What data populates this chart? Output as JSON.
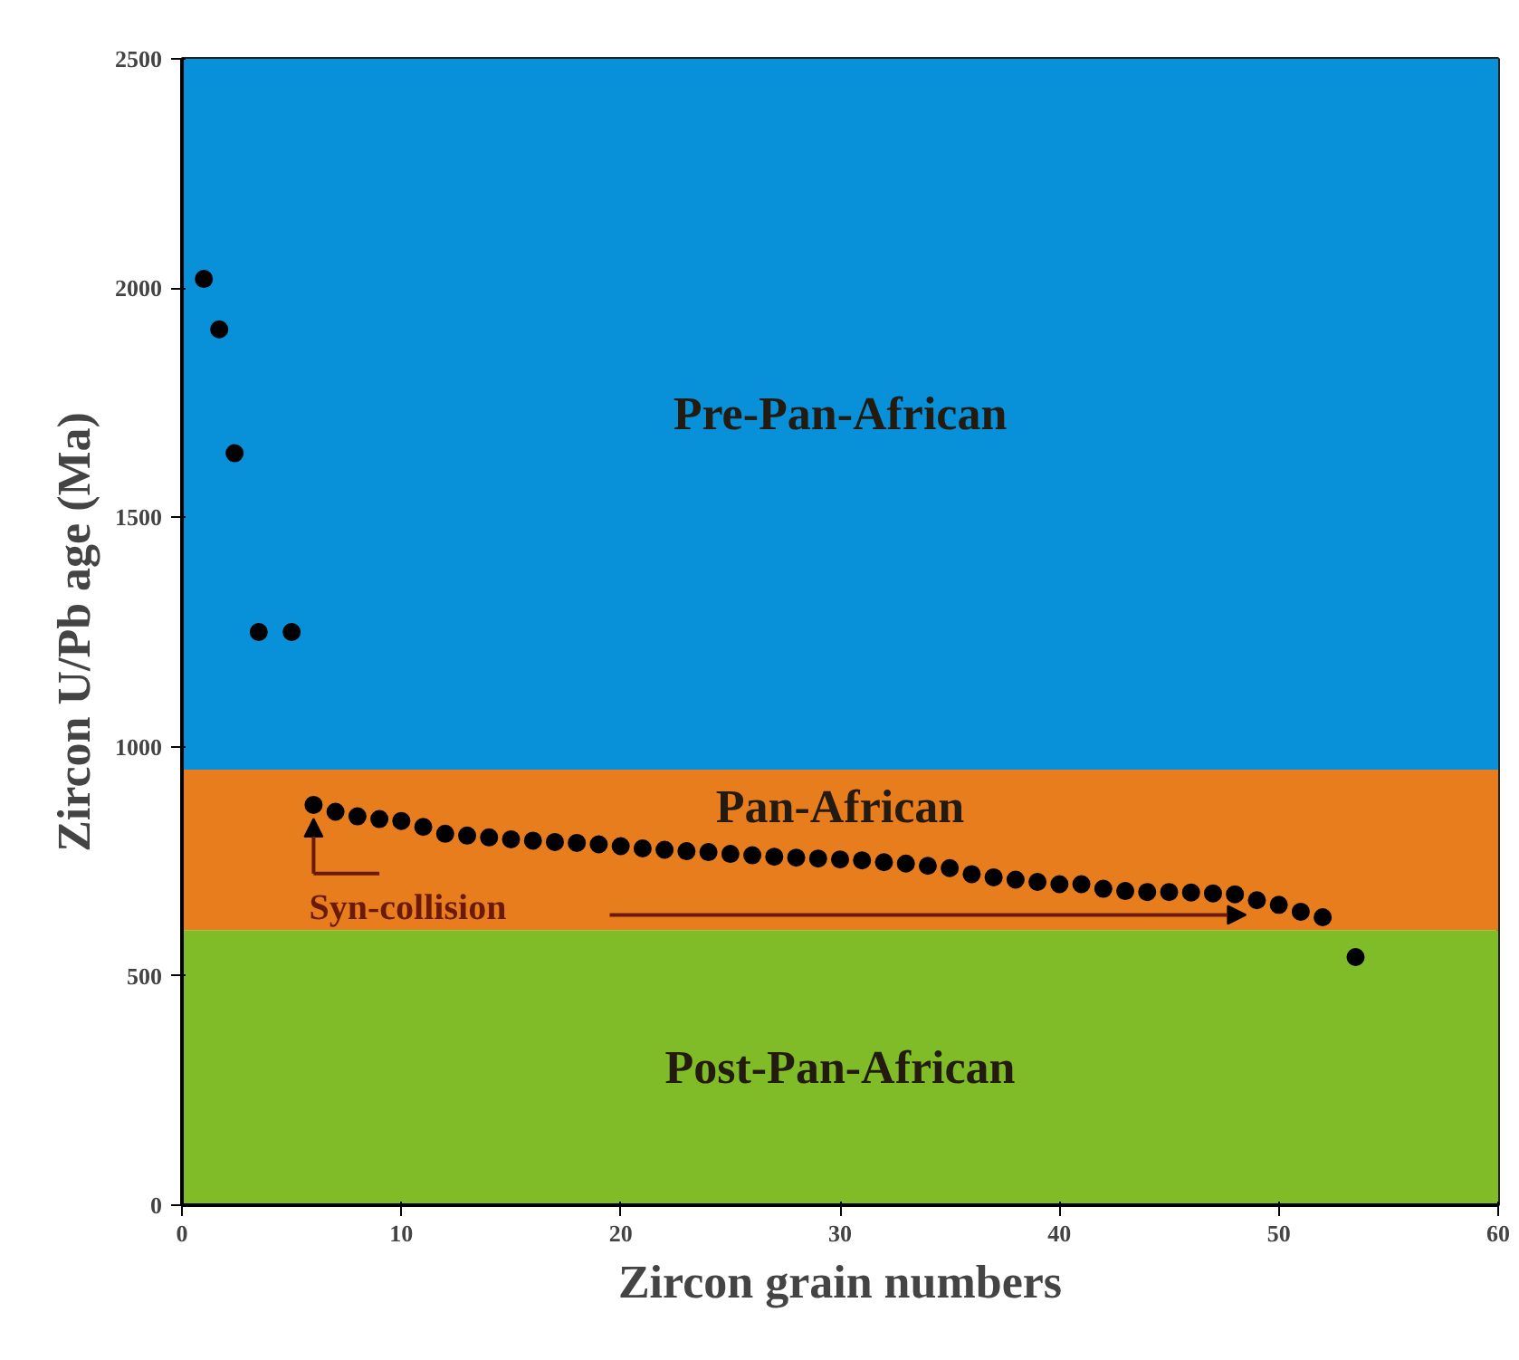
{
  "chart_data": {
    "type": "scatter",
    "xlabel": "Zircon grain numbers",
    "ylabel": "Zircon U/Pb age (Ma)",
    "x": [
      1,
      1.7,
      2.4,
      3.5,
      5,
      6,
      7,
      8,
      9,
      10,
      11,
      12,
      13,
      14,
      15,
      16,
      17,
      18,
      19,
      20,
      21,
      22,
      23,
      24,
      25,
      26,
      27,
      28,
      29,
      30,
      31,
      32,
      33,
      34,
      35,
      36,
      37,
      38,
      39,
      40,
      41,
      42,
      43,
      44,
      45,
      46,
      47,
      48,
      49,
      50,
      51,
      52,
      53.5
    ],
    "series": [
      {
        "color": "#000000",
        "values": [
          2020,
          1910,
          1640,
          1250,
          1250,
          873,
          858,
          848,
          842,
          838,
          825,
          810,
          806,
          802,
          798,
          795,
          792,
          790,
          787,
          783,
          778,
          775,
          772,
          770,
          766,
          763,
          760,
          758,
          756,
          754,
          752,
          748,
          745,
          740,
          735,
          722,
          715,
          710,
          705,
          700,
          700,
          690,
          685,
          683,
          683,
          682,
          680,
          678,
          665,
          655,
          640,
          628,
          541
        ]
      }
    ],
    "xlim": [
      0,
      60
    ],
    "ylim": [
      0,
      2500
    ],
    "xticks": [
      0,
      10,
      20,
      30,
      40,
      50,
      60
    ],
    "yticks": [
      0,
      500,
      1000,
      1500,
      2000,
      2500
    ],
    "marker": "circle",
    "bands": [
      {
        "axis": "y",
        "from": 950,
        "to": 2500,
        "label": "Pre-Pan-African",
        "color": "#0890d8"
      },
      {
        "axis": "y",
        "from": 600,
        "to": 950,
        "label": "Pan-African",
        "color": "#e87d1e"
      },
      {
        "axis": "y",
        "from": 0,
        "to": 600,
        "label": "Post-Pan-African",
        "color": "#80bc28"
      }
    ],
    "annotations": [
      {
        "text": "Syn-collision",
        "x": 6,
        "y": 873
      }
    ]
  }
}
